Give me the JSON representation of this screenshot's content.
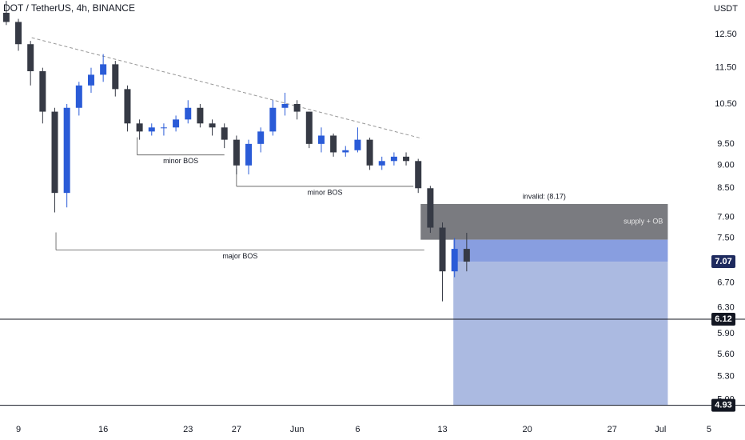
{
  "chart_data": {
    "type": "candlestick",
    "title": "DOT / TetherUS, 4h, BINANCE",
    "y_unit": "USDT",
    "log_scale": true,
    "up_color": "#2a5bd7",
    "down_color": "#363a45",
    "x": [
      8,
      9,
      10,
      11,
      12,
      13,
      14,
      15,
      16,
      17,
      18,
      19,
      20,
      21,
      22,
      23,
      24,
      25,
      26,
      27,
      28,
      29,
      30,
      31,
      32,
      33,
      34,
      35,
      36,
      37,
      38,
      39,
      40,
      41,
      42,
      43,
      44,
      45,
      46
    ],
    "open": [
      13.2,
      12.9,
      12.2,
      11.4,
      10.3,
      8.4,
      10.4,
      11.0,
      11.3,
      11.6,
      10.9,
      10.0,
      9.8,
      9.9,
      9.9,
      10.1,
      10.4,
      10.0,
      9.9,
      9.6,
      9.0,
      9.5,
      9.8,
      10.4,
      10.5,
      10.3,
      9.5,
      9.7,
      9.3,
      9.35,
      9.6,
      9.0,
      9.1,
      9.2,
      9.1,
      8.5,
      7.7,
      6.9,
      7.3
    ],
    "high": [
      13.6,
      13.0,
      12.3,
      11.5,
      10.4,
      10.5,
      11.1,
      11.5,
      11.9,
      11.7,
      11.0,
      10.1,
      10.0,
      10.0,
      10.2,
      10.6,
      10.5,
      10.1,
      10.0,
      9.7,
      9.6,
      9.9,
      10.6,
      10.8,
      10.6,
      10.3,
      9.9,
      9.75,
      9.45,
      9.9,
      9.65,
      9.2,
      9.3,
      9.3,
      9.15,
      8.55,
      7.8,
      7.5,
      7.6
    ],
    "low": [
      12.8,
      12.0,
      11.0,
      10.0,
      8.0,
      8.1,
      10.2,
      10.8,
      11.1,
      10.7,
      9.8,
      9.6,
      9.7,
      9.7,
      9.8,
      10.0,
      9.9,
      9.7,
      9.4,
      8.8,
      8.8,
      9.3,
      9.7,
      10.2,
      10.1,
      9.4,
      9.3,
      9.2,
      9.2,
      9.3,
      8.9,
      8.9,
      9.0,
      9.0,
      8.4,
      7.6,
      6.4,
      6.8,
      6.9
    ],
    "close": [
      12.9,
      12.2,
      11.4,
      10.3,
      8.4,
      10.4,
      11.0,
      11.3,
      11.6,
      10.9,
      10.0,
      9.8,
      9.9,
      9.9,
      10.1,
      10.4,
      10.0,
      9.9,
      9.6,
      9.0,
      9.5,
      9.8,
      10.4,
      10.5,
      10.3,
      9.5,
      9.7,
      9.3,
      9.35,
      9.6,
      9.0,
      9.1,
      9.2,
      9.1,
      8.5,
      7.7,
      6.9,
      7.3,
      7.07
    ],
    "xlim": [
      7.48,
      66.2
    ],
    "ylim": [
      4.8,
      13.63
    ],
    "xticks": [
      9,
      16,
      23,
      27,
      {
        "value": 32,
        "label": "Jun"
      },
      {
        "value": 37,
        "label": "6"
      },
      {
        "value": 44,
        "label": "13"
      },
      {
        "value": 51,
        "label": "20"
      },
      {
        "value": 58,
        "label": "27"
      },
      {
        "value": 62,
        "label": "Jul"
      },
      {
        "value": 66,
        "label": "5"
      }
    ],
    "yticks": [
      {
        "value": 12.5,
        "label": "12.50"
      },
      {
        "value": 11.5,
        "label": "11.50"
      },
      {
        "value": 10.5,
        "label": "10.50"
      },
      {
        "value": 9.5,
        "label": "9.50"
      },
      {
        "value": 9,
        "label": "9.00"
      },
      {
        "value": 8.5,
        "label": "8.50"
      },
      {
        "value": 7.9,
        "label": "7.90"
      },
      {
        "value": 7.5,
        "label": "7.50"
      },
      {
        "value": 6.7,
        "label": "6.70"
      },
      {
        "value": 6.3,
        "label": "6.30"
      },
      {
        "value": 5.9,
        "label": "5.90"
      },
      {
        "value": 5.6,
        "label": "5.60"
      },
      {
        "value": 5.3,
        "label": "5.30"
      },
      {
        "value": 5,
        "label": "5.00"
      }
    ],
    "trendline": {
      "x": [
        10.1,
        42.3
      ],
      "y": [
        12.4,
        9.63
      ]
    },
    "levels": [
      {
        "label": "minor BOS",
        "x": [
          18.8,
          26
        ],
        "y": 9.24
      },
      {
        "label": "minor BOS",
        "x": [
          27,
          41.6
        ],
        "y": 8.54
      },
      {
        "label": "major BOS",
        "x": [
          12.1,
          42.5
        ],
        "y": 7.28
      }
    ],
    "zones": [
      {
        "x": [
          42.2,
          62.6
        ],
        "y": [
          7.47,
          8.17
        ],
        "color": "#6b6d72",
        "label": "supply + OB",
        "caption": "invalid: (8.17)"
      },
      {
        "x": [
          44.9,
          62.6
        ],
        "y": [
          7.07,
          7.47
        ],
        "color": "#7b94dd"
      },
      {
        "x": [
          44.9,
          62.6
        ],
        "y": [
          4.93,
          7.07
        ],
        "color": "#a2b3de"
      }
    ],
    "hlines": [
      6.12,
      4.93
    ],
    "last_price": 7.07
  }
}
